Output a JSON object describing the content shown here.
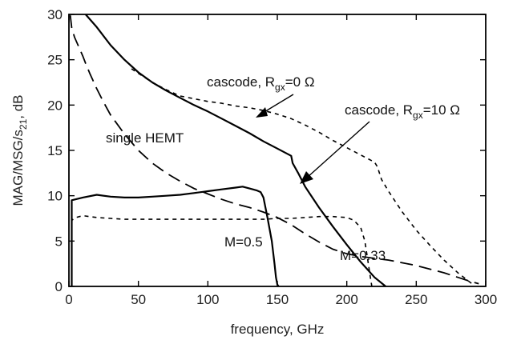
{
  "chart_data": {
    "type": "line",
    "title": "",
    "xlabel": "frequency, GHz",
    "ylabel": {
      "main": "MAG/MSG/s",
      "sub": "21",
      "tail": ", dB"
    },
    "xlim": [
      0,
      300
    ],
    "ylim": [
      0,
      30
    ],
    "xticks": [
      0,
      50,
      100,
      150,
      200,
      250,
      300
    ],
    "yticks": [
      0,
      5,
      10,
      15,
      20,
      25,
      30
    ],
    "grid": false,
    "legend": "none",
    "series": [
      {
        "style": "long-dash",
        "color": "#000000",
        "x": [
          1,
          2,
          4,
          6,
          8,
          10,
          12,
          15,
          20,
          25,
          30,
          40,
          50,
          60,
          70,
          80,
          90,
          100,
          110,
          120,
          130,
          140,
          150,
          160,
          170,
          180,
          190,
          200,
          210,
          220,
          230,
          240,
          250,
          260,
          270,
          280,
          290,
          295
        ],
        "y": [
          29.9,
          28.5,
          27.5,
          26.8,
          26.1,
          25.4,
          24.6,
          23.5,
          21.8,
          20.3,
          18.9,
          16.8,
          15.0,
          13.6,
          12.5,
          11.6,
          10.8,
          10.2,
          9.6,
          9.1,
          8.7,
          8.2,
          7.6,
          6.8,
          5.8,
          4.9,
          4.1,
          3.6,
          3.3,
          3.1,
          2.9,
          2.6,
          2.3,
          1.9,
          1.5,
          1.0,
          0.5,
          0.3
        ]
      },
      {
        "style": "solid",
        "color": "#000000",
        "x": [
          12,
          20,
          30,
          40,
          50,
          60,
          70,
          80,
          90,
          100,
          110,
          120,
          130,
          140,
          150,
          160,
          161,
          165,
          170,
          180,
          190,
          200,
          210,
          220,
          228
        ],
        "y": [
          30,
          28.6,
          26.6,
          25.0,
          23.6,
          22.5,
          21.6,
          20.8,
          20.0,
          19.3,
          18.5,
          17.7,
          16.9,
          16.0,
          15.2,
          14.4,
          13.6,
          12.5,
          11.0,
          8.7,
          6.6,
          4.6,
          2.7,
          1.0,
          0
        ]
      },
      {
        "style": "short-dash",
        "color": "#000000",
        "x": [
          45,
          50,
          60,
          70,
          80,
          90,
          100,
          110,
          120,
          130,
          140,
          150,
          160,
          170,
          180,
          190,
          200,
          210,
          220,
          222,
          225,
          230,
          240,
          250,
          260,
          270,
          280,
          290
        ],
        "y": [
          24.0,
          23.5,
          22.5,
          21.7,
          21.0,
          20.7,
          20.4,
          20.2,
          19.9,
          19.7,
          19.4,
          19.0,
          18.5,
          17.8,
          17.0,
          16.1,
          15.3,
          14.5,
          13.7,
          13.2,
          11.8,
          10.5,
          8.2,
          6.2,
          4.5,
          2.9,
          1.5,
          0.3
        ]
      },
      {
        "style": "solid",
        "color": "#000000",
        "x": [
          2,
          2,
          10,
          20,
          30,
          40,
          50,
          60,
          70,
          80,
          90,
          100,
          110,
          120,
          125,
          130,
          135,
          138,
          140,
          143,
          146,
          148,
          149,
          150,
          151
        ],
        "y": [
          0,
          9.5,
          9.8,
          10.1,
          9.9,
          9.8,
          9.8,
          9.9,
          10.0,
          10.1,
          10.3,
          10.5,
          10.7,
          10.9,
          11.0,
          10.8,
          10.6,
          10.4,
          9.8,
          7.5,
          5.0,
          2.5,
          1.0,
          0.2,
          0
        ]
      },
      {
        "style": "short-dash",
        "color": "#000000",
        "x": [
          2,
          2,
          5,
          10,
          20,
          30,
          40,
          50,
          60,
          70,
          80,
          90,
          100,
          110,
          120,
          130,
          140,
          150,
          160,
          170,
          180,
          190,
          200,
          205,
          210,
          213,
          215,
          217,
          218
        ],
        "y": [
          0,
          7.3,
          7.6,
          7.8,
          7.6,
          7.5,
          7.4,
          7.4,
          7.4,
          7.4,
          7.4,
          7.4,
          7.4,
          7.4,
          7.4,
          7.4,
          7.4,
          7.5,
          7.5,
          7.6,
          7.7,
          7.7,
          7.6,
          7.3,
          6.5,
          5.0,
          3.0,
          1.0,
          0
        ]
      }
    ],
    "annotations": [
      {
        "id": "cascode0",
        "text": "cascode, R",
        "sub": "gx",
        "tail": "=0 Ω"
      },
      {
        "id": "cascode10",
        "text": "cascode, R",
        "sub": "gx",
        "tail": "=10 Ω"
      },
      {
        "id": "single",
        "text": "single HEMT"
      },
      {
        "id": "m05",
        "text": "M=0.5"
      },
      {
        "id": "m033",
        "text": "M=0.33"
      }
    ]
  }
}
